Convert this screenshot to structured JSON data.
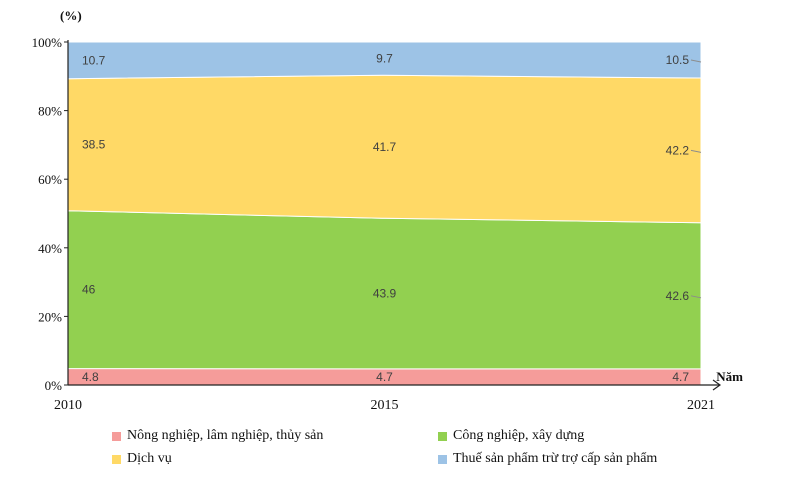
{
  "chart_data": {
    "type": "area",
    "stacked": true,
    "normalized": true,
    "y_unit_label": "(%)",
    "xlabel": "Năm",
    "x": [
      "2010",
      "2015",
      "2021"
    ],
    "y_ticks": [
      "0%",
      "20%",
      "40%",
      "60%",
      "80%",
      "100%"
    ],
    "ylim": [
      0,
      100
    ],
    "series": [
      {
        "name": "Nông nghiệp, lâm nghiệp, thủy sản",
        "color": "#f59c9a",
        "values": [
          4.8,
          4.7,
          4.7
        ],
        "labels": [
          "4.8",
          "4.7",
          "4.7"
        ]
      },
      {
        "name": "Công nghiệp, xây dựng",
        "color": "#92d050",
        "values": [
          46,
          43.9,
          42.6
        ],
        "labels": [
          "46",
          "43.9",
          "42.6"
        ]
      },
      {
        "name": "Dịch vụ",
        "color": "#ffd966",
        "values": [
          38.5,
          41.7,
          42.2
        ],
        "labels": [
          "38.5",
          "41.7",
          "42.2"
        ]
      },
      {
        "name": "Thuế sản phẩm trừ trợ cấp sản phẩm",
        "color": "#9dc3e6",
        "values": [
          10.7,
          9.7,
          10.5
        ],
        "labels": [
          "10.7",
          "9.7",
          "10.5"
        ]
      }
    ],
    "legend_position": "bottom",
    "grid": false
  }
}
